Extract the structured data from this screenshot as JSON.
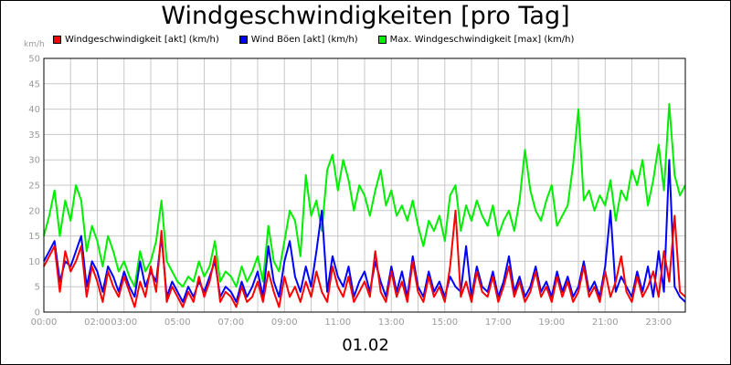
{
  "chart_data": {
    "type": "line",
    "title": "Windgeschwindigkeiten [pro Tag]",
    "ylabel": "km/h",
    "xlabel": "01.02",
    "ylim": [
      0,
      50
    ],
    "yticks": [
      "0",
      "5",
      "10",
      "15",
      "20",
      "25",
      "30",
      "35",
      "40",
      "45",
      "50"
    ],
    "xlim": [
      0,
      24
    ],
    "xticks": [
      {
        "t": 0,
        "label": "00:00"
      },
      {
        "t": 2,
        "label": "02:00"
      },
      {
        "t": 3,
        "label": "03:00"
      },
      {
        "t": 5,
        "label": "05:00"
      },
      {
        "t": 7,
        "label": "07:00"
      },
      {
        "t": 9,
        "label": "09:00"
      },
      {
        "t": 11,
        "label": "11:00"
      },
      {
        "t": 13,
        "label": "13:00"
      },
      {
        "t": 15,
        "label": "15:00"
      },
      {
        "t": 17,
        "label": "17:00"
      },
      {
        "t": 19,
        "label": "19:00"
      },
      {
        "t": 21,
        "label": "21:00"
      },
      {
        "t": 23,
        "label": "23:00"
      }
    ],
    "grid": true,
    "legend_position": "top",
    "series": [
      {
        "name": "Windgeschwindigkeit [akt] (km/h)",
        "color": "#ff0000",
        "x": [
          0,
          0.2,
          0.4,
          0.6,
          0.8,
          1.0,
          1.2,
          1.4,
          1.6,
          1.8,
          2.0,
          2.2,
          2.4,
          2.6,
          2.8,
          3.0,
          3.2,
          3.4,
          3.6,
          3.8,
          4.0,
          4.2,
          4.4,
          4.6,
          4.8,
          5.0,
          5.2,
          5.4,
          5.6,
          5.8,
          6.0,
          6.2,
          6.4,
          6.6,
          6.8,
          7.0,
          7.2,
          7.4,
          7.6,
          7.8,
          8.0,
          8.2,
          8.4,
          8.6,
          8.8,
          9.0,
          9.2,
          9.4,
          9.6,
          9.8,
          10.0,
          10.2,
          10.4,
          10.6,
          10.8,
          11.0,
          11.2,
          11.4,
          11.6,
          11.8,
          12.0,
          12.2,
          12.4,
          12.6,
          12.8,
          13.0,
          13.2,
          13.4,
          13.6,
          13.8,
          14.0,
          14.2,
          14.4,
          14.6,
          14.8,
          15.0,
          15.2,
          15.4,
          15.6,
          15.8,
          16.0,
          16.2,
          16.4,
          16.6,
          16.8,
          17.0,
          17.2,
          17.4,
          17.6,
          17.8,
          18.0,
          18.2,
          18.4,
          18.6,
          18.8,
          19.0,
          19.2,
          19.4,
          19.6,
          19.8,
          20.0,
          20.2,
          20.4,
          20.6,
          20.8,
          21.0,
          21.2,
          21.4,
          21.6,
          21.8,
          22.0,
          22.2,
          22.4,
          22.6,
          22.8,
          23.0,
          23.2,
          23.4,
          23.6,
          23.8,
          24.0
        ],
        "y": [
          9,
          11,
          13,
          4,
          12,
          8,
          10,
          13,
          3,
          9,
          6,
          2,
          8,
          5,
          3,
          7,
          4,
          1,
          6,
          3,
          9,
          4,
          16,
          2,
          5,
          3,
          1,
          4,
          2,
          7,
          3,
          6,
          11,
          2,
          4,
          3,
          1,
          5,
          2,
          3,
          6,
          2,
          8,
          4,
          1,
          7,
          3,
          5,
          2,
          6,
          3,
          8,
          4,
          2,
          9,
          5,
          3,
          7,
          2,
          4,
          6,
          3,
          12,
          4,
          2,
          8,
          3,
          6,
          2,
          10,
          4,
          2,
          7,
          3,
          5,
          2,
          9,
          20,
          3,
          6,
          2,
          8,
          4,
          3,
          7,
          2,
          5,
          9,
          3,
          6,
          2,
          4,
          8,
          3,
          5,
          2,
          7,
          3,
          6,
          2,
          4,
          9,
          3,
          5,
          2,
          8,
          3,
          6,
          11,
          4,
          2,
          7,
          3,
          5,
          8,
          3,
          12,
          6,
          19,
          4,
          3
        ]
      },
      {
        "name": "Wind Böen [akt] (km/h)",
        "color": "#0000ff",
        "x": [
          0,
          0.2,
          0.4,
          0.6,
          0.8,
          1.0,
          1.2,
          1.4,
          1.6,
          1.8,
          2.0,
          2.2,
          2.4,
          2.6,
          2.8,
          3.0,
          3.2,
          3.4,
          3.6,
          3.8,
          4.0,
          4.2,
          4.4,
          4.6,
          4.8,
          5.0,
          5.2,
          5.4,
          5.6,
          5.8,
          6.0,
          6.2,
          6.4,
          6.6,
          6.8,
          7.0,
          7.2,
          7.4,
          7.6,
          7.8,
          8.0,
          8.2,
          8.4,
          8.6,
          8.8,
          9.0,
          9.2,
          9.4,
          9.6,
          9.8,
          10.0,
          10.2,
          10.4,
          10.6,
          10.8,
          11.0,
          11.2,
          11.4,
          11.6,
          11.8,
          12.0,
          12.2,
          12.4,
          12.6,
          12.8,
          13.0,
          13.2,
          13.4,
          13.6,
          13.8,
          14.0,
          14.2,
          14.4,
          14.6,
          14.8,
          15.0,
          15.2,
          15.4,
          15.6,
          15.8,
          16.0,
          16.2,
          16.4,
          16.6,
          16.8,
          17.0,
          17.2,
          17.4,
          17.6,
          17.8,
          18.0,
          18.2,
          18.4,
          18.6,
          18.8,
          19.0,
          19.2,
          19.4,
          19.6,
          19.8,
          20.0,
          20.2,
          20.4,
          20.6,
          20.8,
          21.0,
          21.2,
          21.4,
          21.6,
          21.8,
          22.0,
          22.2,
          22.4,
          22.6,
          22.8,
          23.0,
          23.2,
          23.4,
          23.6,
          23.8,
          24.0
        ],
        "y": [
          10,
          12,
          14,
          6,
          10,
          9,
          12,
          15,
          5,
          10,
          8,
          4,
          9,
          7,
          4,
          8,
          5,
          3,
          10,
          5,
          8,
          6,
          15,
          3,
          6,
          4,
          2,
          5,
          3,
          6,
          4,
          7,
          10,
          3,
          5,
          4,
          2,
          6,
          3,
          5,
          8,
          3,
          13,
          6,
          3,
          10,
          14,
          7,
          4,
          9,
          5,
          12,
          20,
          4,
          11,
          7,
          5,
          9,
          3,
          6,
          8,
          4,
          10,
          6,
          3,
          9,
          4,
          8,
          3,
          11,
          5,
          3,
          8,
          4,
          6,
          3,
          7,
          5,
          4,
          13,
          3,
          9,
          5,
          4,
          8,
          3,
          6,
          11,
          4,
          7,
          3,
          5,
          9,
          4,
          6,
          3,
          8,
          4,
          7,
          3,
          5,
          10,
          4,
          6,
          3,
          9,
          20,
          4,
          7,
          5,
          3,
          8,
          4,
          9,
          3,
          12,
          4,
          30,
          5,
          3,
          2
        ]
      },
      {
        "name": "Max. Windgeschwindigkeit [max] (km/h)",
        "color": "#00ee00",
        "x": [
          0,
          0.2,
          0.4,
          0.6,
          0.8,
          1.0,
          1.2,
          1.4,
          1.6,
          1.8,
          2.0,
          2.2,
          2.4,
          2.6,
          2.8,
          3.0,
          3.2,
          3.4,
          3.6,
          3.8,
          4.0,
          4.2,
          4.4,
          4.6,
          4.8,
          5.0,
          5.2,
          5.4,
          5.6,
          5.8,
          6.0,
          6.2,
          6.4,
          6.6,
          6.8,
          7.0,
          7.2,
          7.4,
          7.6,
          7.8,
          8.0,
          8.2,
          8.4,
          8.6,
          8.8,
          9.0,
          9.2,
          9.4,
          9.6,
          9.8,
          10.0,
          10.2,
          10.4,
          10.6,
          10.8,
          11.0,
          11.2,
          11.4,
          11.6,
          11.8,
          12.0,
          12.2,
          12.4,
          12.6,
          12.8,
          13.0,
          13.2,
          13.4,
          13.6,
          13.8,
          14.0,
          14.2,
          14.4,
          14.6,
          14.8,
          15.0,
          15.2,
          15.4,
          15.6,
          15.8,
          16.0,
          16.2,
          16.4,
          16.6,
          16.8,
          17.0,
          17.2,
          17.4,
          17.6,
          17.8,
          18.0,
          18.2,
          18.4,
          18.6,
          18.8,
          19.0,
          19.2,
          19.4,
          19.6,
          19.8,
          20.0,
          20.2,
          20.4,
          20.6,
          20.8,
          21.0,
          21.2,
          21.4,
          21.6,
          21.8,
          22.0,
          22.2,
          22.4,
          22.6,
          22.8,
          23.0,
          23.2,
          23.4,
          23.6,
          23.8,
          24.0
        ],
        "y": [
          15,
          19,
          24,
          15,
          22,
          18,
          25,
          22,
          12,
          17,
          14,
          9,
          15,
          12,
          8,
          10,
          7,
          5,
          12,
          8,
          10,
          14,
          22,
          10,
          8,
          6,
          5,
          7,
          6,
          10,
          7,
          9,
          14,
          6,
          8,
          7,
          5,
          9,
          6,
          8,
          11,
          6,
          17,
          10,
          8,
          14,
          20,
          18,
          11,
          27,
          19,
          22,
          16,
          28,
          31,
          24,
          30,
          26,
          20,
          25,
          23,
          19,
          24,
          28,
          21,
          24,
          19,
          21,
          18,
          22,
          17,
          13,
          18,
          16,
          19,
          14,
          23,
          25,
          16,
          21,
          18,
          22,
          19,
          17,
          21,
          15,
          18,
          20,
          16,
          22,
          32,
          24,
          20,
          18,
          22,
          25,
          17,
          19,
          21,
          29,
          40,
          22,
          24,
          20,
          23,
          21,
          26,
          18,
          24,
          22,
          28,
          25,
          30,
          21,
          26,
          33,
          24,
          41,
          27,
          23,
          25
        ]
      }
    ]
  }
}
